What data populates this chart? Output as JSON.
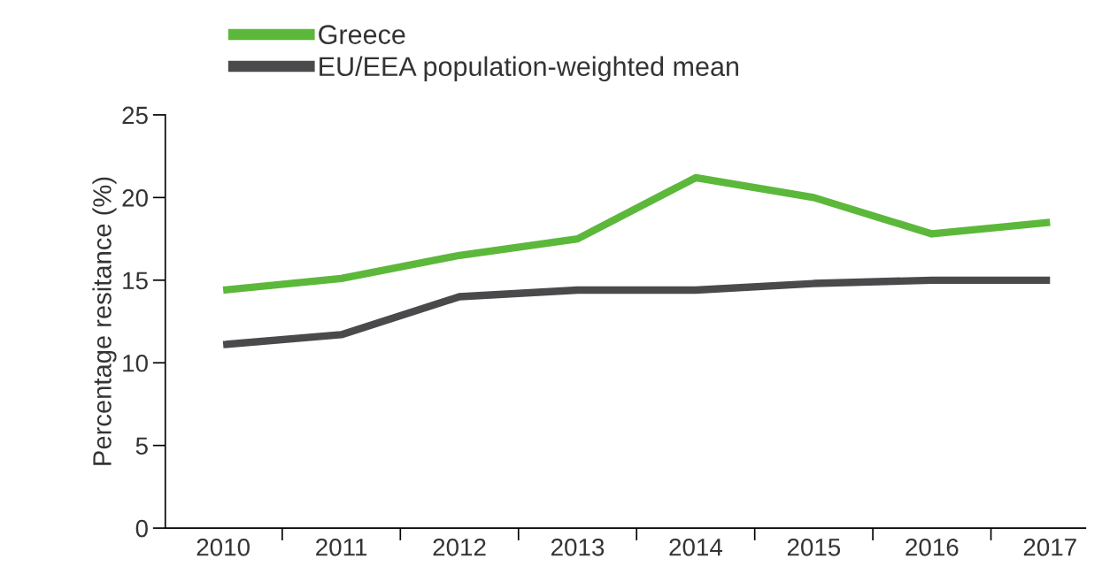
{
  "chart_data": {
    "type": "line",
    "ylabel": "Percentage resitance (%)",
    "categories": [
      "2010",
      "2011",
      "2012",
      "2013",
      "2014",
      "2015",
      "2016",
      "2017"
    ],
    "series": [
      {
        "name": "Greece",
        "color": "#5cb83a",
        "values": [
          14.4,
          15.1,
          16.5,
          17.5,
          21.2,
          20.0,
          17.8,
          18.5
        ]
      },
      {
        "name": "EU/EEA population-weighted mean",
        "color": "#4a4a4c",
        "values": [
          11.1,
          11.7,
          14.0,
          14.4,
          14.4,
          14.8,
          15.0,
          15.0
        ]
      }
    ],
    "ylim": [
      0,
      25
    ],
    "yticks": [
      0,
      5,
      10,
      15,
      20,
      25
    ],
    "grid": false,
    "legend": "top left",
    "marker": "none",
    "line_style": "solid"
  }
}
